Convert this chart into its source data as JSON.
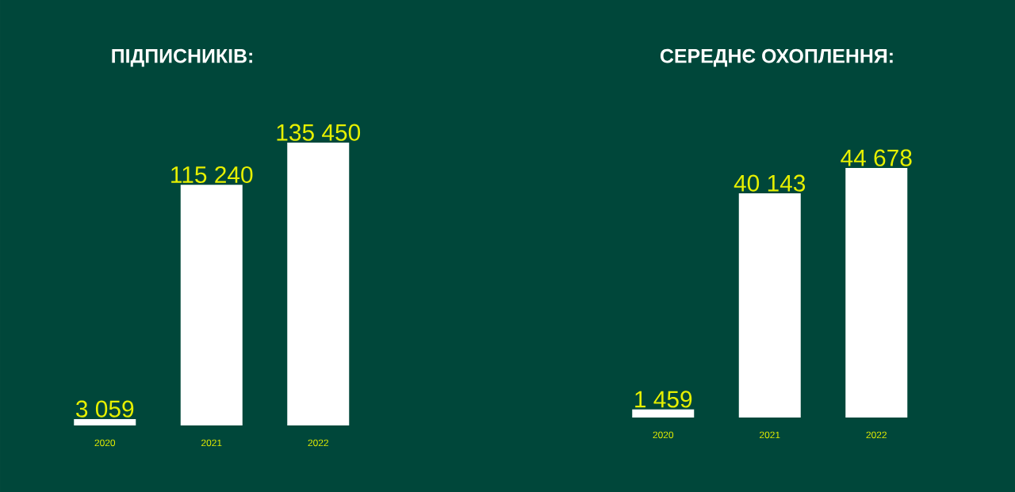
{
  "chart_data": [
    {
      "type": "bar",
      "title": "ПІДПИСНИКІВ:",
      "categories": [
        "2020",
        "2021",
        "2022"
      ],
      "values": [
        3059,
        115240,
        135450
      ],
      "value_labels": [
        "3 059",
        "115 240",
        "135 450"
      ],
      "color": "#ffffff"
    },
    {
      "type": "bar",
      "title": "СЕРЕДНЄ ОХОПЛЕННЯ:",
      "categories": [
        "2020",
        "2021",
        "2022"
      ],
      "values": [
        1459,
        40143,
        44678
      ],
      "value_labels": [
        "1 459",
        "40 143",
        "44 678"
      ],
      "color": "#ffffff"
    }
  ]
}
